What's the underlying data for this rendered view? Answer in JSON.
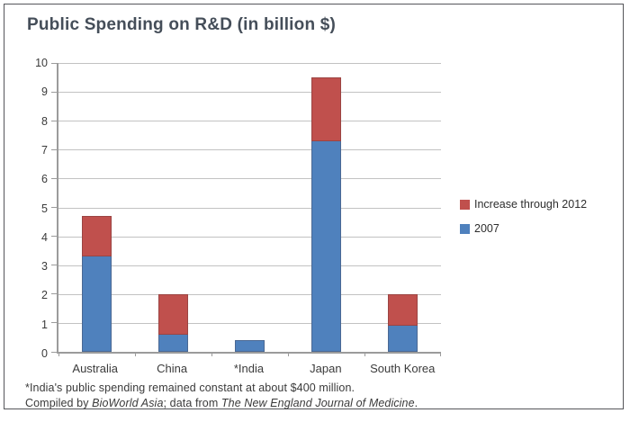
{
  "chart_data": {
    "type": "bar",
    "stacked": true,
    "title": "Public Spending on R&D (in billion $)",
    "xlabel": "",
    "ylabel": "",
    "categories": [
      "Australia",
      "China",
      "*India",
      "Japan",
      "South Korea"
    ],
    "series": [
      {
        "name": "2007",
        "color": "#4f81bd",
        "values": [
          3.3,
          0.6,
          0.4,
          7.3,
          0.9
        ]
      },
      {
        "name": "Increase through 2012",
        "color": "#c0504d",
        "values": [
          1.4,
          1.4,
          0,
          2.2,
          1.1
        ]
      }
    ],
    "totals": [
      4.7,
      2.0,
      0.4,
      9.5,
      2.0
    ],
    "ylim": [
      0,
      10
    ],
    "yticks": [
      0,
      1,
      2,
      3,
      4,
      5,
      6,
      7,
      8,
      9,
      10
    ],
    "grid": true,
    "legend_position": "right",
    "legend": [
      {
        "label": "Increase through 2012",
        "color": "#c0504d"
      },
      {
        "label": "2007",
        "color": "#4f81bd"
      }
    ]
  },
  "footnotes": {
    "line1": "*India's public spending remained constant at about $400 million.",
    "line2_segments": [
      {
        "text": "Compiled by ",
        "italic": false
      },
      {
        "text": "BioWorld Asia",
        "italic": true
      },
      {
        "text": "; data from ",
        "italic": false
      },
      {
        "text": "The New England Journal of Medicine",
        "italic": true
      },
      {
        "text": ".",
        "italic": false
      }
    ]
  },
  "colors": {
    "series_2007": "#4f81bd",
    "series_increase": "#c0504d",
    "title_text": "#454e59",
    "axis_line": "#9b9b9b",
    "gridline": "#c2c2c2",
    "body_text": "#3b3b3b",
    "frame_border": "#55565a"
  }
}
